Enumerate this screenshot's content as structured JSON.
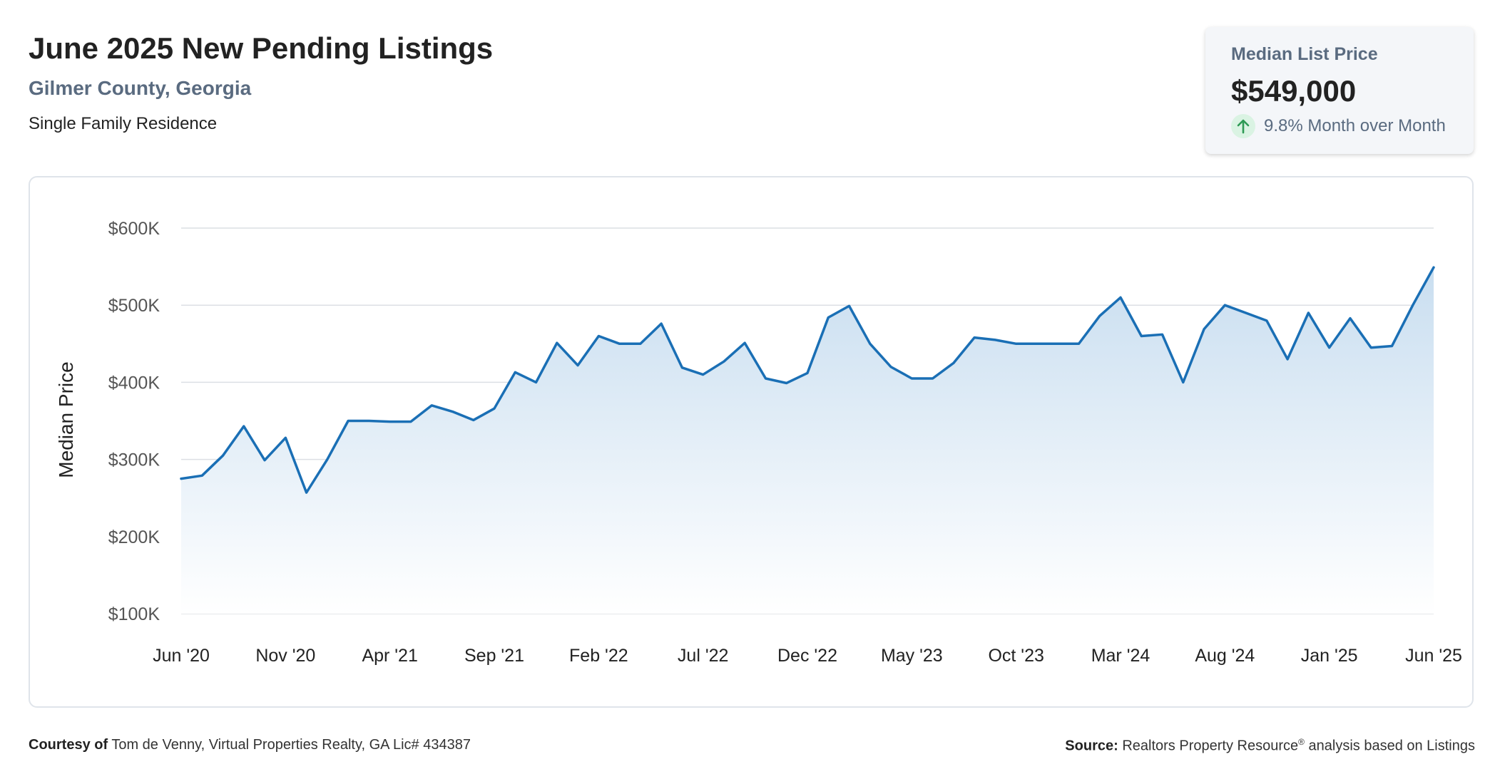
{
  "header": {
    "title": "June 2025 New Pending Listings",
    "subtitle": "Gilmer County, Georgia",
    "property_type": "Single Family Residence"
  },
  "stat_card": {
    "label": "Median List Price",
    "value": "$549,000",
    "change": "9.8% Month over Month",
    "icon": "arrow-up-icon"
  },
  "footer": {
    "courtesy_label": "Courtesy of",
    "courtesy_text": "Tom de Venny, Virtual Properties Realty, GA Lic# 434387",
    "source_label": "Source:",
    "source_name": "Realtors Property Resource",
    "source_mark": "®",
    "source_text": "analysis based on Listings"
  },
  "colors": {
    "line": "#1a6fb5",
    "fill_top": "#c9def0",
    "fill_bottom": "#ffffff",
    "grid": "#dcdfe4"
  },
  "chart_data": {
    "type": "area",
    "ylabel": "Median Price",
    "xlabel": "",
    "ylim": [
      100000,
      600000
    ],
    "y_ticks": [
      100000,
      200000,
      300000,
      400000,
      500000,
      600000
    ],
    "y_tick_labels": [
      "$100K",
      "$200K",
      "$300K",
      "$400K",
      "$500K",
      "$600K"
    ],
    "x_tick_labels": [
      "Jun '20",
      "Nov '20",
      "Apr '21",
      "Sep '21",
      "Feb '22",
      "Jul '22",
      "Dec '22",
      "May '23",
      "Oct '23",
      "Mar '24",
      "Aug '24",
      "Jan '25",
      "Jun '25"
    ],
    "x": [
      "2020-06",
      "2020-07",
      "2020-08",
      "2020-09",
      "2020-10",
      "2020-11",
      "2020-12",
      "2021-01",
      "2021-02",
      "2021-03",
      "2021-04",
      "2021-05",
      "2021-06",
      "2021-07",
      "2021-08",
      "2021-09",
      "2021-10",
      "2021-11",
      "2021-12",
      "2022-01",
      "2022-02",
      "2022-03",
      "2022-04",
      "2022-05",
      "2022-06",
      "2022-07",
      "2022-08",
      "2022-09",
      "2022-10",
      "2022-11",
      "2022-12",
      "2023-01",
      "2023-02",
      "2023-03",
      "2023-04",
      "2023-05",
      "2023-06",
      "2023-07",
      "2023-08",
      "2023-09",
      "2023-10",
      "2023-11",
      "2023-12",
      "2024-01",
      "2024-02",
      "2024-03",
      "2024-04",
      "2024-05",
      "2024-06",
      "2024-07",
      "2024-08",
      "2024-09",
      "2024-10",
      "2024-11",
      "2024-12",
      "2025-01",
      "2025-02",
      "2025-03",
      "2025-04",
      "2025-05",
      "2025-06"
    ],
    "series": [
      {
        "values": [
          275000,
          279000,
          305000,
          343000,
          299000,
          328000,
          257000,
          300000,
          350000,
          350000,
          349000,
          349000,
          370000,
          362000,
          351000,
          366000,
          413000,
          400000,
          451000,
          422000,
          460000,
          450000,
          450000,
          476000,
          419000,
          410000,
          427000,
          451000,
          405000,
          399000,
          412000,
          484000,
          499000,
          450000,
          420000,
          405000,
          405000,
          425000,
          458000,
          455000,
          450000,
          450000,
          450000,
          450000,
          486000,
          510000,
          460000,
          462000,
          400000,
          469000,
          500000,
          490000,
          480000,
          430000,
          490000,
          445000,
          483000,
          445000,
          447000,
          500000,
          549000
        ]
      }
    ],
    "grid": true,
    "legend": "none"
  }
}
